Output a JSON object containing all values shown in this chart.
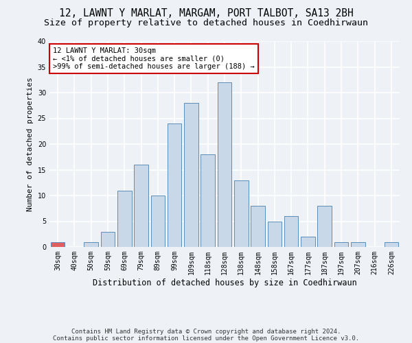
{
  "title": "12, LAWNT Y MARLAT, MARGAM, PORT TALBOT, SA13 2BH",
  "subtitle": "Size of property relative to detached houses in Coedhirwaun",
  "xlabel": "Distribution of detached houses by size in Coedhirwaun",
  "ylabel": "Number of detached properties",
  "footnote1": "Contains HM Land Registry data © Crown copyright and database right 2024.",
  "footnote2": "Contains public sector information licensed under the Open Government Licence v3.0.",
  "categories": [
    "30sqm",
    "40sqm",
    "50sqm",
    "59sqm",
    "69sqm",
    "79sqm",
    "89sqm",
    "99sqm",
    "109sqm",
    "118sqm",
    "128sqm",
    "138sqm",
    "148sqm",
    "158sqm",
    "167sqm",
    "177sqm",
    "187sqm",
    "197sqm",
    "207sqm",
    "216sqm",
    "226sqm"
  ],
  "values": [
    1,
    0,
    1,
    3,
    11,
    16,
    10,
    24,
    28,
    18,
    32,
    13,
    8,
    5,
    6,
    2,
    8,
    1,
    1,
    0,
    1
  ],
  "bar_color": "#c8d8e8",
  "bar_edge_color": "#5b8db8",
  "highlight_bar_index": 0,
  "highlight_bar_color": "#e06060",
  "ylim": [
    0,
    40
  ],
  "yticks": [
    0,
    5,
    10,
    15,
    20,
    25,
    30,
    35,
    40
  ],
  "annotation_text": "12 LAWNT Y MARLAT: 30sqm\n← <1% of detached houses are smaller (0)\n>99% of semi-detached houses are larger (188) →",
  "annotation_box_facecolor": "#ffffff",
  "annotation_box_edgecolor": "#cc0000",
  "bg_color": "#eef2f7",
  "plot_bg_color": "#eef2f7",
  "grid_color": "#ffffff",
  "title_fontsize": 10.5,
  "subtitle_fontsize": 9.5,
  "xlabel_fontsize": 8.5,
  "ylabel_fontsize": 8,
  "tick_fontsize": 7,
  "annot_fontsize": 7.5,
  "footnote_fontsize": 6.5
}
